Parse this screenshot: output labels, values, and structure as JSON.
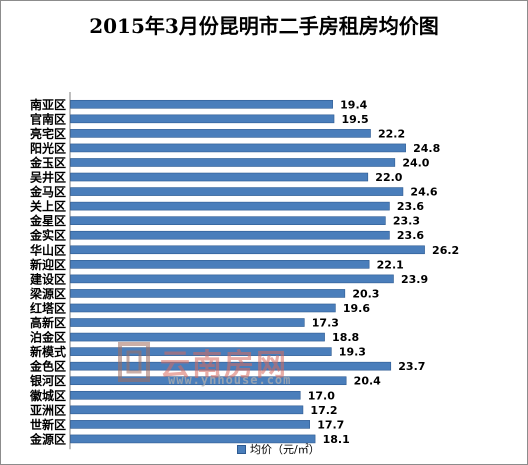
{
  "chart_data": {
    "type": "bar",
    "orientation": "horizontal",
    "title": "2015年3月份昆明市二手房租房均价图",
    "categories": [
      "南亚区",
      "官南区",
      "亮宅区",
      "阳光区",
      "金玉区",
      "吴井区",
      "金马区",
      "关上区",
      "金星区",
      "金实区",
      "华山区",
      "新迎区",
      "建设区",
      "梁源区",
      "红塔区",
      "高新区",
      "泊金区",
      "新模式",
      "金色区",
      "银河区",
      "徽城区",
      "亚洲区",
      "世新区",
      "金源区"
    ],
    "series": [
      {
        "name": "均价（元/㎡）",
        "values": [
          19.4,
          19.5,
          22.2,
          24.8,
          24.0,
          22.0,
          24.6,
          23.6,
          23.3,
          23.6,
          26.2,
          22.1,
          23.9,
          20.3,
          19.6,
          17.3,
          18.8,
          19.3,
          23.7,
          20.4,
          17.0,
          17.2,
          17.7,
          18.1
        ]
      }
    ],
    "value_labels": [
      "19.4",
      "19.5",
      "22.2",
      "24.8",
      "24.0",
      "22.0",
      "24.6",
      "23.6",
      "23.3",
      "23.6",
      "26.2",
      "22.1",
      "23.9",
      "20.3",
      "19.6",
      "17.3",
      "18.8",
      "19.3",
      "23.7",
      "20.4",
      "17.0",
      "17.2",
      "17.7",
      "18.1"
    ],
    "xlim": [
      0,
      28
    ],
    "grid": false,
    "legend_position": "bottom",
    "bar_color": "#4a7ebb",
    "bar_edge_color": "#2d5a91"
  },
  "watermark": {
    "text": "云南房网",
    "url": "www.ynhouse.com",
    "color": "#d7695f"
  }
}
